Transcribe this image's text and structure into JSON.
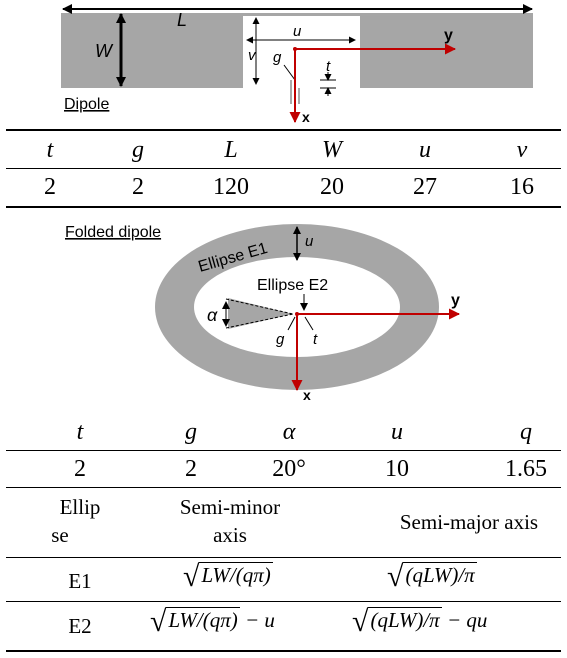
{
  "dipole": {
    "caption": "Dipole",
    "labels": {
      "L": "L",
      "W": "W",
      "u": "u",
      "v": "v",
      "g": "g",
      "t": "t",
      "x": "x",
      "y": "y"
    },
    "headers": [
      "t",
      "g",
      "L",
      "W",
      "u",
      "v"
    ],
    "values": [
      "2",
      "2",
      "120",
      "20",
      "27",
      "16"
    ]
  },
  "folded": {
    "caption": "Folded dipole",
    "labels": {
      "e1": "Ellipse E1",
      "e2": "Ellipse E2",
      "u": "u",
      "alpha": "α",
      "g": "g",
      "t": "t",
      "x": "x",
      "y": "y"
    },
    "headers": [
      "t",
      "g",
      "α",
      "u",
      "q"
    ],
    "values": [
      "2",
      "2",
      "20°",
      "10",
      "1.65"
    ]
  },
  "ellipse_table": {
    "col_ellipse_line1": "Ellip",
    "col_ellipse_line2": "se",
    "col_minor_line1": "Semi-minor",
    "col_minor_line2": "axis",
    "col_major": "Semi-major axis",
    "rows": [
      {
        "name": "E1",
        "minor": "LW/(qπ)",
        "minor_suffix": "",
        "major": "(qLW)/π",
        "major_suffix": ""
      },
      {
        "name": "E2",
        "minor": "LW/(qπ)",
        "minor_suffix": " − u",
        "major": "(qLW)/π",
        "major_suffix": " − qu"
      }
    ]
  },
  "colors": {
    "metal": "#a6a6a6",
    "axis": "#c00000"
  }
}
